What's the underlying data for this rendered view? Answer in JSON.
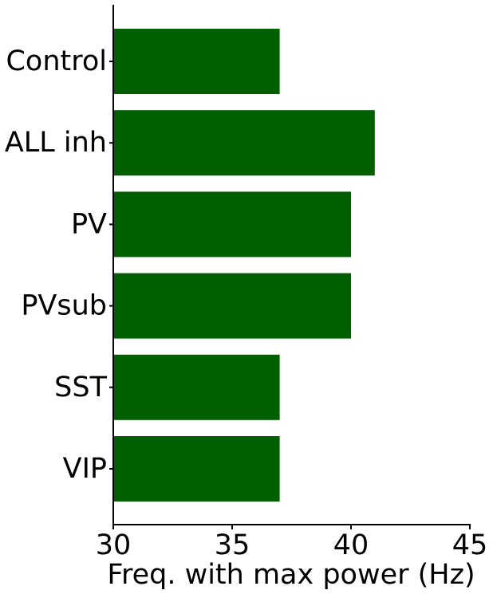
{
  "chart_data": {
    "type": "bar",
    "orientation": "horizontal",
    "categories": [
      "Control",
      "ALL inh",
      "PV",
      "PVsub",
      "SST",
      "VIP"
    ],
    "values": [
      37,
      41,
      40,
      40,
      37,
      37
    ],
    "xlabel": "Freq. with max power (Hz)",
    "ylabel": "",
    "xlim": [
      30,
      45
    ],
    "xticks": [
      30,
      35,
      40,
      45
    ],
    "bar_color": "#006000",
    "grid": false,
    "legend": "none"
  }
}
